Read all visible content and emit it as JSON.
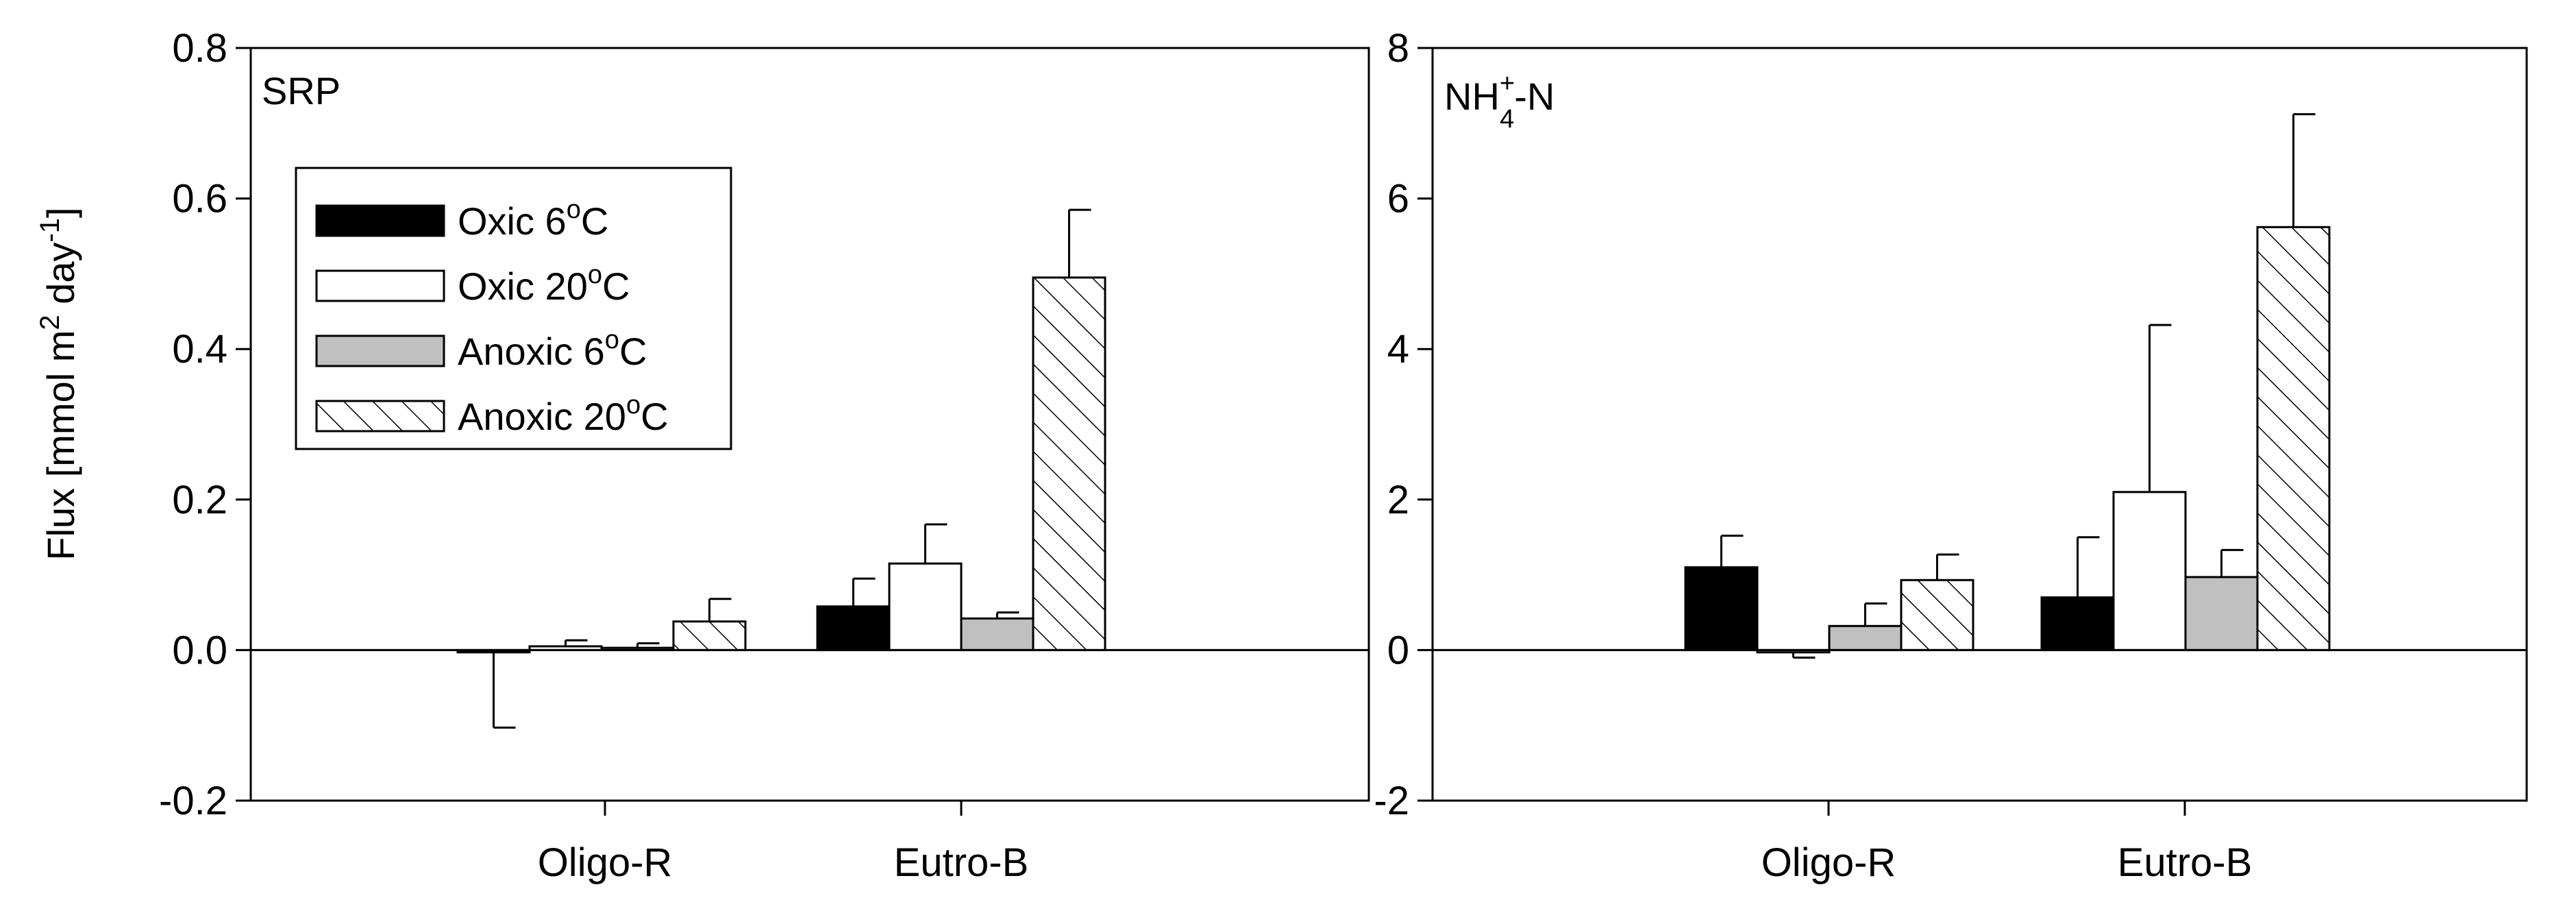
{
  "chart_data": [
    {
      "type": "bar",
      "panel_label": {
        "main": "SRP",
        "sub": "",
        "sup": "",
        "tail": ""
      },
      "ylabel": {
        "text1": "Flux [mmol m",
        "sup1": "2",
        "text2": " day",
        "sup2": "-1",
        "text3": "]"
      },
      "ylim": [
        -0.2,
        0.8
      ],
      "yticks": [
        "-0.2",
        "0.0",
        "0.2",
        "0.4",
        "0.6",
        "0.8"
      ],
      "yticks_values": [
        -0.2,
        0.0,
        0.2,
        0.4,
        0.6,
        0.8
      ],
      "categories": [
        "Oligo-R",
        "Eutro-B"
      ],
      "series": [
        {
          "name": "Oxic 6°C",
          "fill": "#000000",
          "values": [
            -0.003,
            0.058
          ],
          "errors": [
            0.1,
            0.037
          ]
        },
        {
          "name": "Oxic 20°C",
          "fill": "#ffffff",
          "values": [
            0.005,
            0.115
          ],
          "errors": [
            0.008,
            0.052
          ]
        },
        {
          "name": "Anoxic 6°C",
          "fill": "#c0c0c0",
          "values": [
            0.003,
            0.042
          ],
          "errors": [
            0.006,
            0.008
          ]
        },
        {
          "name": "Anoxic 20°C",
          "fill": "hatch",
          "values": [
            0.038,
            0.495
          ],
          "errors": [
            0.03,
            0.09
          ]
        }
      ],
      "legend_position": "top-left"
    },
    {
      "type": "bar",
      "panel_label": {
        "main": "NH",
        "sub": "4",
        "sup": "+",
        "tail": "-N"
      },
      "ylim": [
        -2,
        8
      ],
      "yticks": [
        "-2",
        "0",
        "2",
        "4",
        "6",
        "8"
      ],
      "yticks_values": [
        -2,
        0,
        2,
        4,
        6,
        8
      ],
      "categories": [
        "Oligo-R",
        "Eutro-B"
      ],
      "series": [
        {
          "name": "Oxic 6°C",
          "fill": "#000000",
          "values": [
            1.1,
            0.7
          ],
          "errors": [
            0.42,
            0.8
          ]
        },
        {
          "name": "Oxic 20°C",
          "fill": "#ffffff",
          "values": [
            -0.03,
            2.1
          ],
          "errors": [
            0.07,
            2.22
          ]
        },
        {
          "name": "Anoxic 6°C",
          "fill": "#c0c0c0",
          "values": [
            0.32,
            0.97
          ],
          "errors": [
            0.3,
            0.36
          ]
        },
        {
          "name": "Anoxic 20°C",
          "fill": "hatch",
          "values": [
            0.93,
            5.62
          ],
          "errors": [
            0.34,
            1.5
          ]
        }
      ]
    }
  ],
  "legend": {
    "items": [
      {
        "pre": "Oxic 6",
        "sup": "o",
        "post": "C",
        "fill": "#000000"
      },
      {
        "pre": "Oxic 20",
        "sup": "o",
        "post": "C",
        "fill": "#ffffff"
      },
      {
        "pre": "Anoxic 6",
        "sup": "o",
        "post": "C",
        "fill": "#c0c0c0"
      },
      {
        "pre": "Anoxic 20",
        "sup": "o",
        "post": "C",
        "fill": "hatch"
      }
    ]
  }
}
